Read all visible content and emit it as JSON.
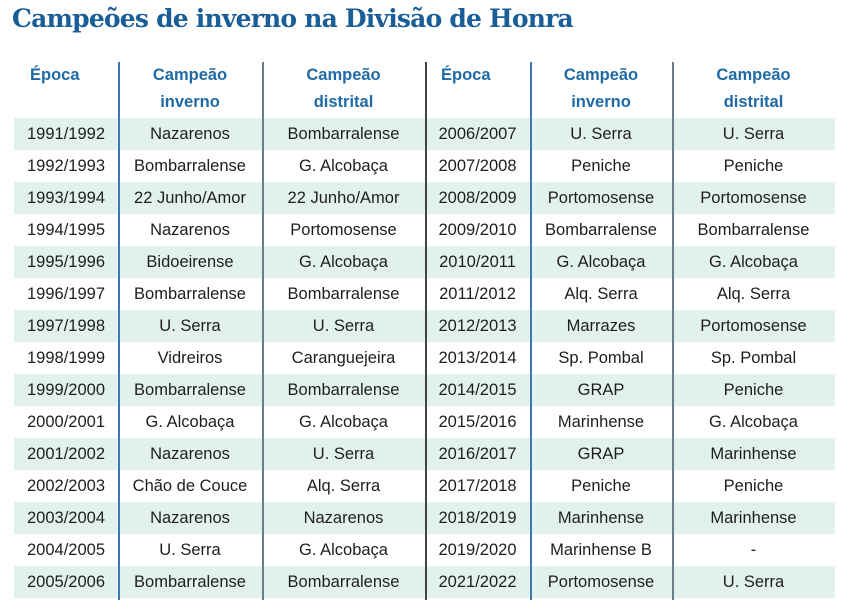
{
  "title": "Campeões de inverno na Divisão de Honra",
  "headers": [
    "Época",
    "Campeão inverno",
    "Campeão distrital",
    "Época",
    "Campeão inverno",
    "Campeão distrital"
  ],
  "header_lines": [
    [
      "Época",
      ""
    ],
    [
      "Campeão",
      "inverno"
    ],
    [
      "Campeão",
      "distrital"
    ],
    [
      "Época",
      ""
    ],
    [
      "Campeão",
      "inverno"
    ],
    [
      "Campeão",
      "distrital"
    ]
  ],
  "colors": {
    "title": "#1a5e98",
    "header": "#1f6aa6",
    "row_shade": "#e3f1ec"
  },
  "left_rows": [
    [
      "1991/1992",
      "Nazarenos",
      "Bombarralense"
    ],
    [
      "1992/1993",
      "Bombarralense",
      "G. Alcobaça"
    ],
    [
      "1993/1994",
      "22 Junho/Amor",
      "22 Junho/Amor"
    ],
    [
      "1994/1995",
      "Nazarenos",
      "Portomosense"
    ],
    [
      "1995/1996",
      "Bidoeirense",
      "G. Alcobaça"
    ],
    [
      "1996/1997",
      "Bombarralense",
      "Bombarralense"
    ],
    [
      "1997/1998",
      "U. Serra",
      "U. Serra"
    ],
    [
      "1998/1999",
      "Vidreiros",
      "Caranguejeira"
    ],
    [
      "1999/2000",
      "Bombarralense",
      "Bombarralense"
    ],
    [
      "2000/2001",
      "G. Alcobaça",
      "G. Alcobaça"
    ],
    [
      "2001/2002",
      "Nazarenos",
      "U. Serra"
    ],
    [
      "2002/2003",
      "Chão de Couce",
      "Alq. Serra"
    ],
    [
      "2003/2004",
      "Nazarenos",
      "Nazarenos"
    ],
    [
      "2004/2005",
      "U. Serra",
      "G. Alcobaça"
    ],
    [
      "2005/2006",
      "Bombarralense",
      "Bombarralense"
    ]
  ],
  "right_rows": [
    [
      "2006/2007",
      "U. Serra",
      "U. Serra"
    ],
    [
      "2007/2008",
      "Peniche",
      "Peniche"
    ],
    [
      "2008/2009",
      "Portomosense",
      "Portomosense"
    ],
    [
      "2009/2010",
      "Bombarralense",
      "Bombarralense"
    ],
    [
      "2010/2011",
      "G. Alcobaça",
      "G. Alcobaça"
    ],
    [
      "2011/2012",
      "Alq. Serra",
      "Alq. Serra"
    ],
    [
      "2012/2013",
      "Marrazes",
      "Portomosense"
    ],
    [
      "2013/2014",
      "Sp. Pombal",
      "Sp. Pombal"
    ],
    [
      "2014/2015",
      "GRAP",
      "Peniche"
    ],
    [
      "2015/2016",
      "Marinhense",
      "G. Alcobaça"
    ],
    [
      "2016/2017",
      "GRAP",
      "Marinhense"
    ],
    [
      "2017/2018",
      "Peniche",
      "Peniche"
    ],
    [
      "2018/2019",
      "Marinhense",
      "Marinhense"
    ],
    [
      "2019/2020",
      "Marinhense B",
      "-"
    ],
    [
      "2021/2022",
      "Portomosense",
      "U. Serra"
    ]
  ]
}
